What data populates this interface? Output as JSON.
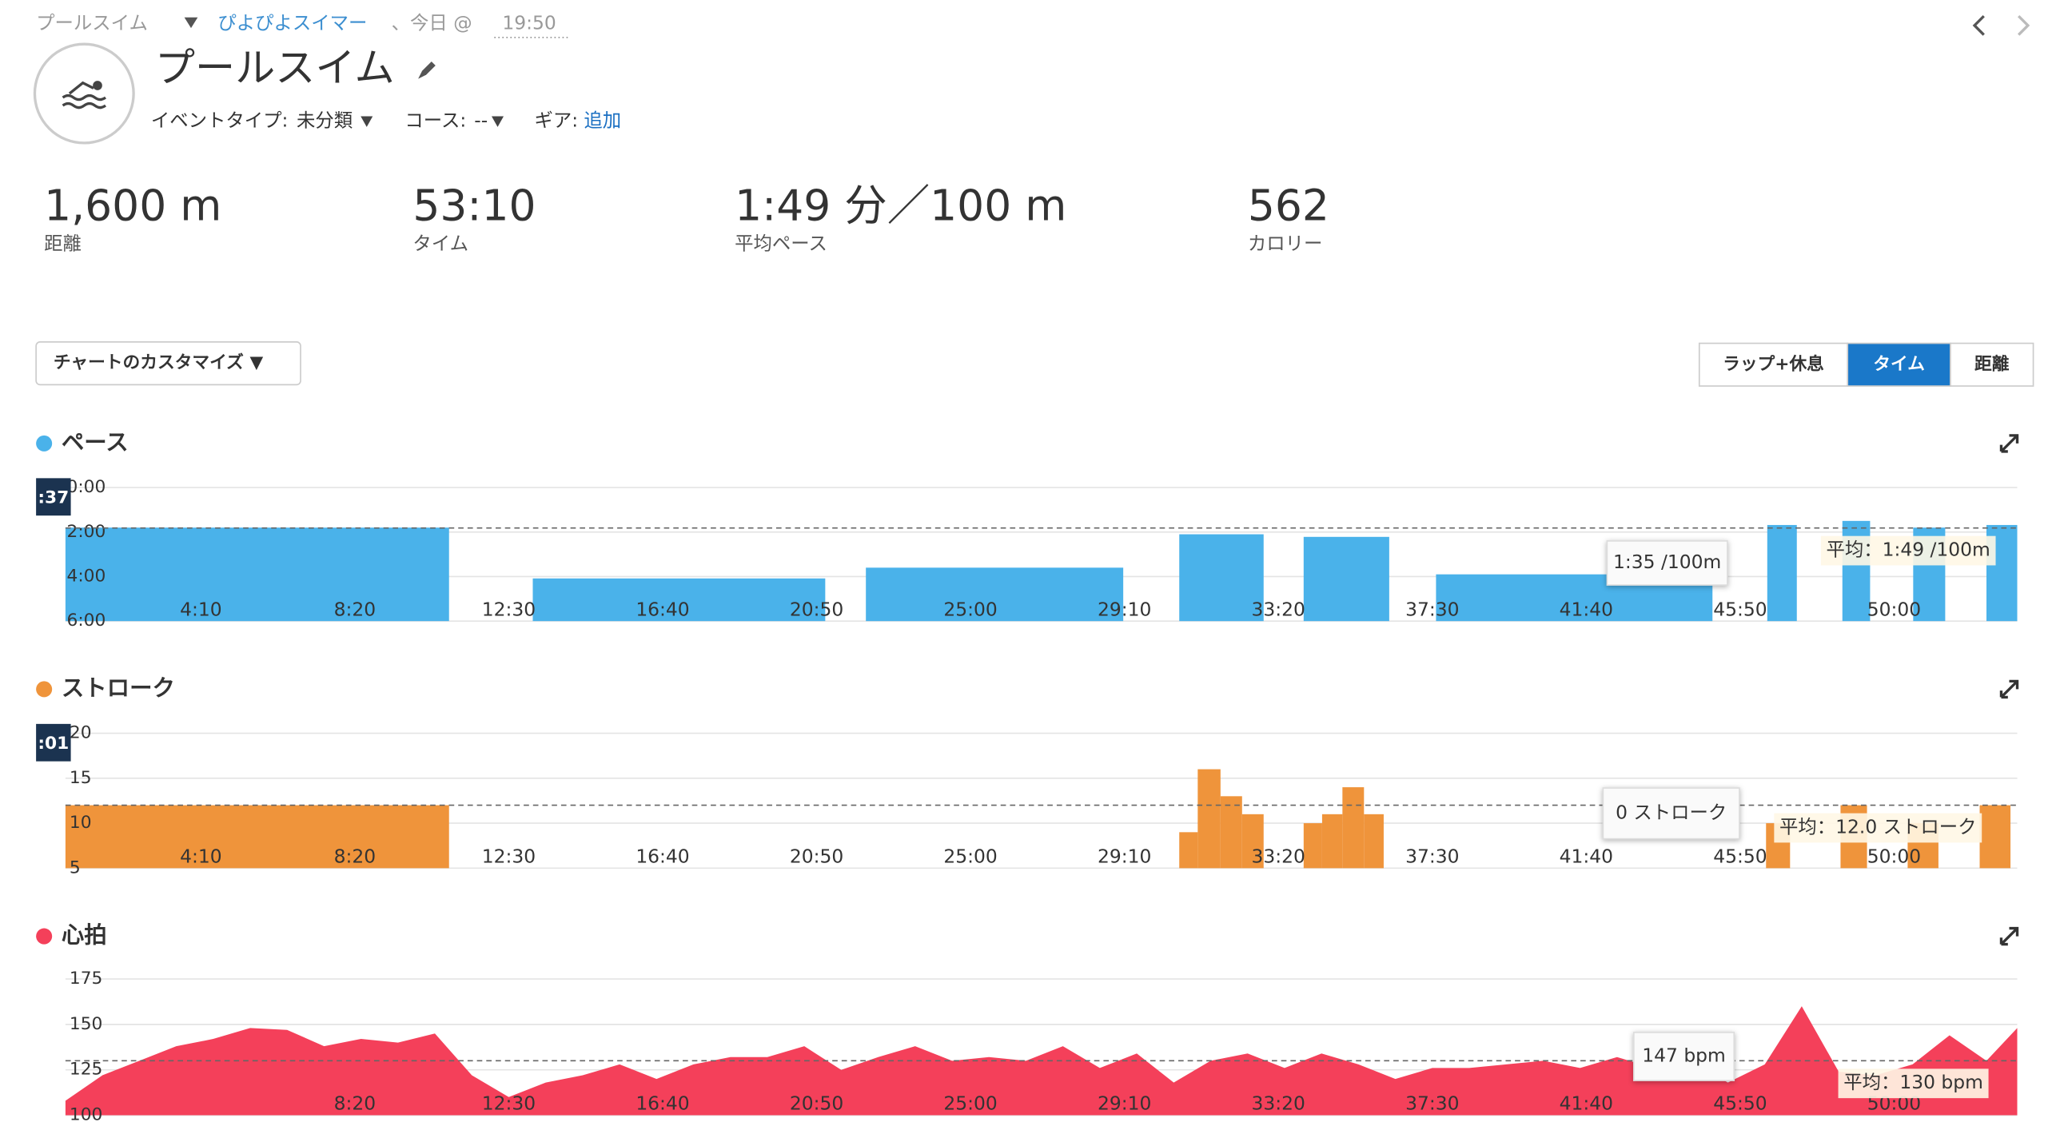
{
  "breadcrumb": {
    "activity": "プールスイム",
    "user": "ぴよぴよスイマー",
    "date": "、今日 @",
    "time": "19:50"
  },
  "header": {
    "title": "プールスイム",
    "event_type_label": "イベントタイプ:",
    "event_type": "未分類",
    "course_label": "コース:",
    "course": "--",
    "gear_label": "ギア:",
    "gear": "追加"
  },
  "stats": [
    {
      "value": "1,600 m",
      "label": "距離"
    },
    {
      "value": "53:10",
      "label": "タイム"
    },
    {
      "value": "1:49 分／100 m",
      "label": "平均ペース"
    },
    {
      "value": "562",
      "label": "カロリー"
    }
  ],
  "customize_button": "チャートのカスタマイズ ▼",
  "toggle": [
    "ラップ+休息",
    "タイム",
    "距離"
  ],
  "toggle_active": 1,
  "charts": [
    {
      "type": "bar",
      "title": "ペース",
      "color": "#4ab2ea",
      "cursor_label": ":37",
      "xlim": [
        30,
        3200
      ],
      "ylim": [
        360,
        0
      ],
      "yticks": [
        {
          "value": 0,
          "label": "0:00"
        },
        {
          "value": 120,
          "label": "2:00"
        },
        {
          "value": 240,
          "label": "4:00"
        },
        {
          "value": 360,
          "label": "6:00"
        }
      ],
      "xticks": [
        {
          "value": 250,
          "label": "4:10"
        },
        {
          "value": 500,
          "label": "8:20"
        },
        {
          "value": 750,
          "label": "12:30"
        },
        {
          "value": 1000,
          "label": "16:40"
        },
        {
          "value": 1250,
          "label": "20:50"
        },
        {
          "value": 1500,
          "label": "25:00"
        },
        {
          "value": 1750,
          "label": "29:10"
        },
        {
          "value": 2000,
          "label": "33:20"
        },
        {
          "value": 2250,
          "label": "37:30"
        },
        {
          "value": 2500,
          "label": "41:40"
        },
        {
          "value": 2750,
          "label": "45:50"
        },
        {
          "value": 3000,
          "label": "50:00"
        }
      ],
      "x": [
        30,
        789,
        1330,
        1839,
        2041,
        2256,
        2794,
        2916,
        3031,
        3150
      ],
      "x_end": [
        653,
        1264,
        1748,
        1976,
        2180,
        2705,
        2842,
        2961,
        3083,
        3200
      ],
      "values": [
        108,
        245,
        216,
        126,
        133,
        234,
        101,
        90,
        108,
        101
      ],
      "average": {
        "value": 109,
        "label": "平均：1:49 /100m"
      },
      "tooltip": "1:35 /100m"
    },
    {
      "type": "bar",
      "title": "ストローク",
      "color": "#ef943b",
      "cursor_label": ":01",
      "xlim": [
        30,
        3200
      ],
      "ylim": [
        5,
        20
      ],
      "yticks": [
        5,
        10,
        15,
        20
      ],
      "xticks": [
        {
          "value": 250,
          "label": "4:10"
        },
        {
          "value": 500,
          "label": "8:20"
        },
        {
          "value": 750,
          "label": "12:30"
        },
        {
          "value": 1000,
          "label": "16:40"
        },
        {
          "value": 1250,
          "label": "20:50"
        },
        {
          "value": 1500,
          "label": "25:00"
        },
        {
          "value": 1750,
          "label": "29:10"
        },
        {
          "value": 2000,
          "label": "33:20"
        },
        {
          "value": 2250,
          "label": "37:30"
        },
        {
          "value": 2500,
          "label": "41:40"
        },
        {
          "value": 2750,
          "label": "45:50"
        },
        {
          "value": 3000,
          "label": "50:00"
        }
      ],
      "x": [
        30,
        1839,
        1869,
        1906,
        1941,
        2041,
        2071,
        2104,
        2139,
        2792,
        2913,
        3022,
        3139
      ],
      "x_end": [
        653,
        1869,
        1906,
        1941,
        1976,
        2071,
        2104,
        2139,
        2171,
        2831,
        2956,
        3072,
        3189
      ],
      "values": [
        12,
        9,
        16,
        13,
        11,
        10,
        11,
        14,
        11,
        10,
        12,
        10,
        12
      ],
      "average": {
        "value": 12,
        "label": "平均：12.0 ストローク"
      },
      "tooltip": "0 ストローク"
    },
    {
      "type": "area",
      "title": "心拍",
      "color": "#f4405a",
      "xlim": [
        30,
        3200
      ],
      "ylim": [
        100,
        175
      ],
      "yticks": [
        100,
        125,
        150,
        175
      ],
      "xticks": [
        {
          "value": 500,
          "label": "8:20"
        },
        {
          "value": 750,
          "label": "12:30"
        },
        {
          "value": 1000,
          "label": "16:40"
        },
        {
          "value": 1250,
          "label": "20:50"
        },
        {
          "value": 1500,
          "label": "25:00"
        },
        {
          "value": 1750,
          "label": "29:10"
        },
        {
          "value": 2000,
          "label": "33:20"
        },
        {
          "value": 2250,
          "label": "37:30"
        },
        {
          "value": 2500,
          "label": "41:40"
        },
        {
          "value": 2750,
          "label": "45:50"
        },
        {
          "value": 3000,
          "label": "50:00"
        }
      ],
      "x": [
        30,
        90,
        150,
        210,
        270,
        330,
        390,
        450,
        510,
        570,
        630,
        690,
        750,
        810,
        870,
        930,
        990,
        1050,
        1110,
        1170,
        1230,
        1290,
        1350,
        1410,
        1470,
        1530,
        1590,
        1650,
        1710,
        1770,
        1830,
        1890,
        1950,
        2010,
        2070,
        2130,
        2190,
        2250,
        2310,
        2370,
        2430,
        2490,
        2550,
        2610,
        2670,
        2730,
        2790,
        2850,
        2910,
        2970,
        3030,
        3090,
        3150,
        3200
      ],
      "values": [
        108,
        122,
        130,
        138,
        142,
        148,
        147,
        138,
        142,
        140,
        145,
        122,
        110,
        118,
        122,
        128,
        120,
        128,
        132,
        132,
        138,
        125,
        132,
        138,
        130,
        132,
        130,
        138,
        126,
        134,
        118,
        130,
        134,
        126,
        134,
        128,
        120,
        126,
        126,
        128,
        130,
        126,
        132,
        126,
        130,
        118,
        128,
        160,
        124,
        122,
        128,
        144,
        130,
        148
      ],
      "average": {
        "value": 130,
        "label": "平均：130 bpm"
      },
      "tooltip": "147 bpm"
    }
  ]
}
